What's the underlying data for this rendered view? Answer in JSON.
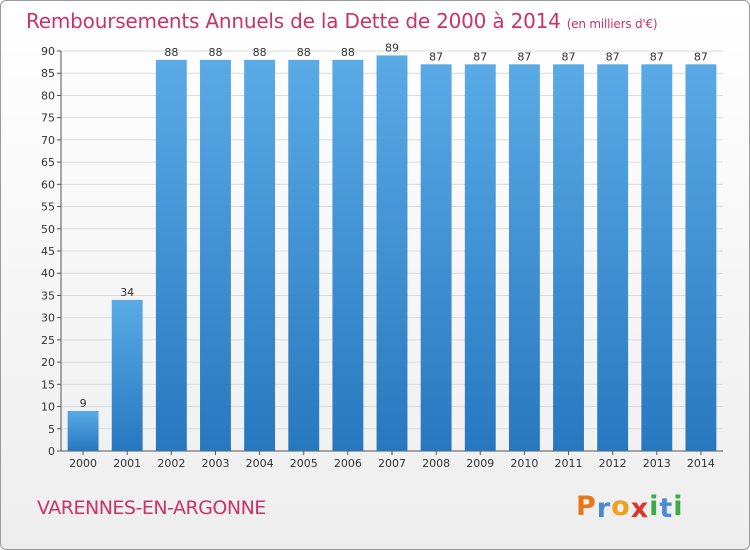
{
  "header": {
    "title": "Remboursements Annuels de la Dette de 2000 à 2014",
    "subtitle": "(en milliers d'€)"
  },
  "footer": {
    "commune": "VARENNES-EN-ARGONNE"
  },
  "logo": {
    "letters": [
      "P",
      "r",
      "o",
      "x",
      "i",
      "t",
      "i"
    ],
    "colors": [
      "#e8761b",
      "#4a8ad6",
      "#f0a020",
      "#d8392b",
      "#3caa4a",
      "#4a8ad6",
      "#3caa4a"
    ]
  },
  "chart_data": {
    "type": "bar",
    "title": "Remboursements Annuels de la Dette de 2000 à 2014",
    "subtitle": "(en milliers d'€)",
    "categories": [
      "2000",
      "2001",
      "2002",
      "2003",
      "2004",
      "2005",
      "2006",
      "2007",
      "2008",
      "2009",
      "2010",
      "2011",
      "2012",
      "2013",
      "2014"
    ],
    "values": [
      9,
      34,
      88,
      88,
      88,
      88,
      88,
      89,
      87,
      87,
      87,
      87,
      87,
      87,
      87
    ],
    "ylim": [
      0,
      90
    ],
    "yticks": [
      0,
      5,
      10,
      15,
      20,
      25,
      30,
      35,
      40,
      45,
      50,
      55,
      60,
      65,
      70,
      75,
      80,
      85,
      90
    ],
    "xlabel": "",
    "ylabel": "",
    "grid": true,
    "colors": {
      "bar_light": "#5aaae6",
      "bar_dark": "#2778bf",
      "grid": "#dcdcdc",
      "axis": "#555555"
    }
  }
}
